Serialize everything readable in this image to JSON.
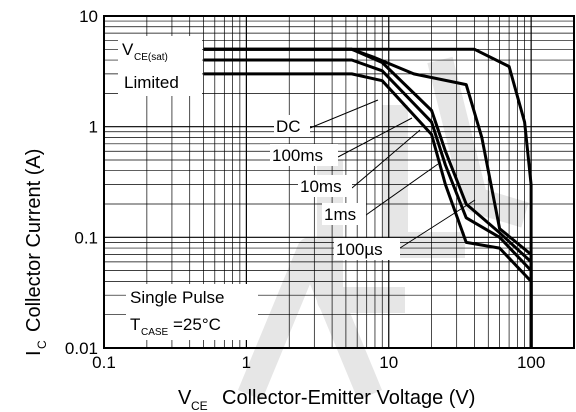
{
  "chart_data": {
    "type": "line",
    "x_scale": "log",
    "y_scale": "log",
    "xlim": [
      0.1,
      200
    ],
    "ylim": [
      0.01,
      10
    ],
    "grid": true,
    "x_ticks": [
      {
        "value": 0.1,
        "label": "0.1"
      },
      {
        "value": 1,
        "label": "1"
      },
      {
        "value": 10,
        "label": "10"
      },
      {
        "value": 100,
        "label": "100"
      }
    ],
    "y_ticks": [
      {
        "value": 10,
        "label": "10"
      },
      {
        "value": 1,
        "label": "1"
      },
      {
        "value": 0.1,
        "label": "0.1"
      },
      {
        "value": 0.01,
        "label": "0.01"
      }
    ],
    "xlabel": {
      "symbol": "V",
      "subscript": "CE",
      "text": "Collector-Emitter Voltage (V)"
    },
    "ylabel": {
      "symbol": "I",
      "subscript": "C",
      "text": "Collector Current (A)"
    },
    "series": [
      {
        "name": "100µs",
        "label": "100µs",
        "points": [
          [
            0.5,
            5
          ],
          [
            40,
            5
          ],
          [
            70,
            3.5
          ],
          [
            90,
            1.1
          ],
          [
            100,
            0.3
          ],
          [
            100,
            0.08
          ],
          [
            100,
            0.01
          ]
        ]
      },
      {
        "name": "1ms",
        "label": "1ms",
        "points": [
          [
            0.5,
            5
          ],
          [
            5.5,
            5
          ],
          [
            8,
            4.2
          ],
          [
            15,
            3.0
          ],
          [
            35,
            2.4
          ],
          [
            45,
            0.8
          ],
          [
            60,
            0.12
          ],
          [
            100,
            0.07
          ],
          [
            100,
            0.01
          ]
        ]
      },
      {
        "name": "10ms",
        "label": "10ms",
        "points": [
          [
            0.5,
            5
          ],
          [
            5.5,
            5
          ],
          [
            9,
            3.8
          ],
          [
            20,
            1.4
          ],
          [
            25,
            0.6
          ],
          [
            35,
            0.2
          ],
          [
            60,
            0.11
          ],
          [
            100,
            0.06
          ],
          [
            100,
            0.01
          ]
        ]
      },
      {
        "name": "100ms",
        "label": "100ms",
        "points": [
          [
            0.5,
            4
          ],
          [
            5.5,
            4
          ],
          [
            9,
            3.2
          ],
          [
            20,
            1.1
          ],
          [
            25,
            0.45
          ],
          [
            35,
            0.15
          ],
          [
            60,
            0.1
          ],
          [
            100,
            0.05
          ],
          [
            100,
            0.01
          ]
        ]
      },
      {
        "name": "DC",
        "label": "DC",
        "points": [
          [
            0.5,
            3
          ],
          [
            5.5,
            3
          ],
          [
            9,
            2.6
          ],
          [
            20,
            0.85
          ],
          [
            25,
            0.3
          ],
          [
            35,
            0.09
          ],
          [
            60,
            0.08
          ],
          [
            100,
            0.04
          ],
          [
            100,
            0.01
          ]
        ]
      }
    ],
    "annotations": {
      "vce_sat_symbol": "V",
      "vce_sat_subscript": "CE(sat)",
      "vce_sat_limited": "Limited",
      "dc": "DC",
      "ms100": "100ms",
      "ms10": "10ms",
      "ms1": "1ms",
      "us100": "100µs",
      "single_pulse": "Single Pulse",
      "tcase_symbol": "T",
      "tcase_subscript": "CASE",
      "tcase_value": "=25°C"
    },
    "watermark_color": "#e6e6e6"
  }
}
